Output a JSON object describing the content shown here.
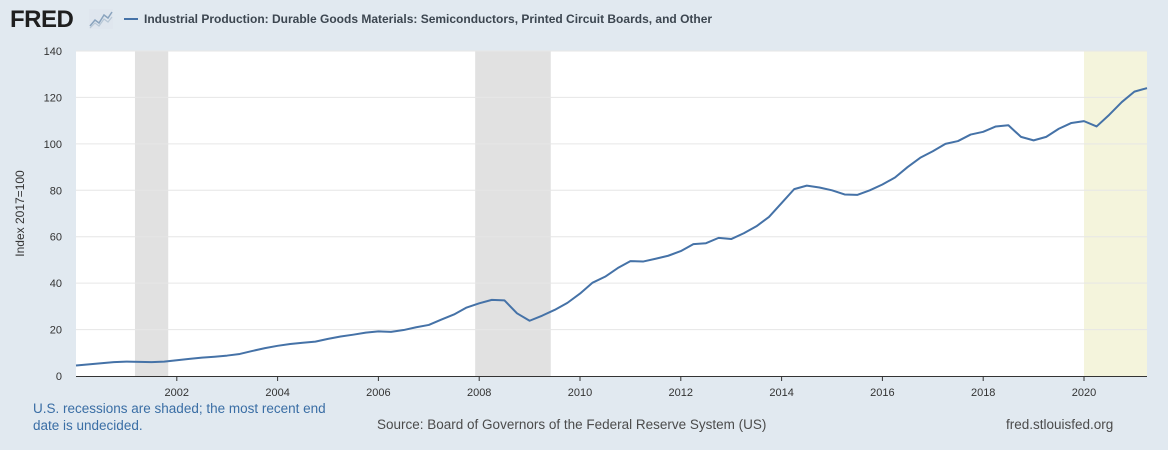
{
  "header": {
    "logo_text": "FRED",
    "legend_label": "Industrial Production: Durable Goods Materials: Semiconductors, Printed Circuit Boards, and Other"
  },
  "footer": {
    "recession_note": "U.S. recessions are shaded; the most recent end date is undecided.",
    "source": "Source: Board of Governors of the Federal Reserve System (US)",
    "url": "fred.stlouisfed.org"
  },
  "colors": {
    "line": "#4572a7",
    "recession": "#e1e1e1",
    "recent_recession": "#f4f4dc",
    "background": "#e1e9f0"
  },
  "chart_data": {
    "type": "line",
    "title": "",
    "xlabel": "",
    "ylabel": "Index 2017=100",
    "xlim": [
      2000.0,
      2021.25
    ],
    "ylim": [
      0,
      140
    ],
    "x_ticks": [
      "2002",
      "2004",
      "2006",
      "2008",
      "2010",
      "2012",
      "2014",
      "2016",
      "2018",
      "2020"
    ],
    "y_ticks": [
      "0",
      "20",
      "40",
      "60",
      "80",
      "100",
      "120",
      "140"
    ],
    "grid": true,
    "recessions": [
      {
        "start": 2001.17,
        "end": 2001.83
      },
      {
        "start": 2007.92,
        "end": 2009.42
      },
      {
        "start": 2020.0,
        "end": 2021.25,
        "undecided": true
      }
    ],
    "series": [
      {
        "name": "Industrial Production: Durable Goods Materials: Semiconductors, Printed Circuit Boards, and Other",
        "x": [
          2000.0,
          2000.25,
          2000.5,
          2000.75,
          2001.0,
          2001.25,
          2001.5,
          2001.75,
          2002.0,
          2002.25,
          2002.5,
          2002.75,
          2003.0,
          2003.25,
          2003.5,
          2003.75,
          2004.0,
          2004.25,
          2004.5,
          2004.75,
          2005.0,
          2005.25,
          2005.5,
          2005.75,
          2006.0,
          2006.25,
          2006.5,
          2006.75,
          2007.0,
          2007.25,
          2007.5,
          2007.75,
          2008.0,
          2008.25,
          2008.5,
          2008.75,
          2009.0,
          2009.25,
          2009.5,
          2009.75,
          2010.0,
          2010.25,
          2010.5,
          2010.75,
          2011.0,
          2011.25,
          2011.5,
          2011.75,
          2012.0,
          2012.25,
          2012.5,
          2012.75,
          2013.0,
          2013.25,
          2013.5,
          2013.75,
          2014.0,
          2014.25,
          2014.5,
          2014.75,
          2015.0,
          2015.25,
          2015.5,
          2015.75,
          2016.0,
          2016.25,
          2016.5,
          2016.75,
          2017.0,
          2017.25,
          2017.5,
          2017.75,
          2018.0,
          2018.25,
          2018.5,
          2018.75,
          2019.0,
          2019.25,
          2019.5,
          2019.75,
          2020.0,
          2020.25,
          2020.5,
          2020.75,
          2021.0,
          2021.25
        ],
        "y": [
          4.5,
          5.0,
          5.5,
          6.0,
          6.2,
          6.1,
          6.0,
          6.2,
          6.8,
          7.4,
          7.9,
          8.3,
          8.8,
          9.5,
          10.8,
          12.0,
          13.0,
          13.8,
          14.3,
          14.8,
          16.0,
          17.0,
          17.8,
          18.7,
          19.2,
          19.0,
          19.8,
          21.0,
          22.0,
          24.3,
          26.5,
          29.5,
          31.3,
          32.8,
          32.6,
          27.0,
          23.8,
          26.0,
          28.5,
          31.5,
          35.5,
          40.2,
          42.8,
          46.5,
          49.5,
          49.3,
          50.5,
          51.8,
          53.8,
          56.8,
          57.2,
          59.5,
          59.0,
          61.5,
          64.5,
          68.5,
          74.5,
          80.5,
          82.0,
          81.2,
          80.0,
          78.2,
          78.0,
          80.0,
          82.5,
          85.5,
          90.0,
          94.0,
          96.8,
          100.0,
          101.2,
          104.0,
          105.2,
          107.5,
          108.0,
          103.0,
          101.5,
          103.0,
          106.5,
          109.0,
          109.8,
          107.5,
          112.5,
          118.0,
          122.5,
          124.0
        ]
      }
    ]
  }
}
